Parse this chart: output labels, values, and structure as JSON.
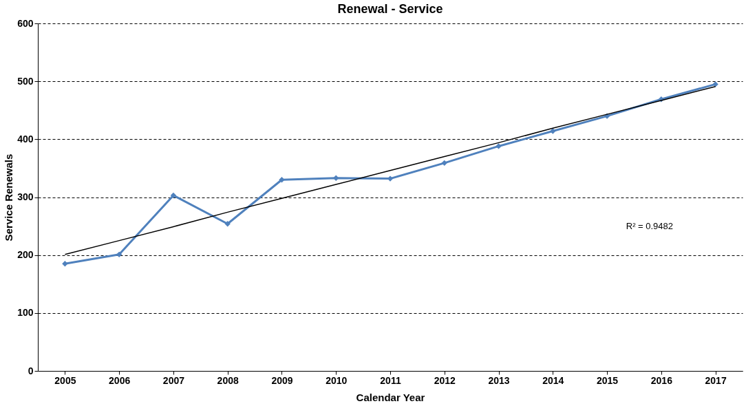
{
  "chart_data": {
    "type": "line",
    "title": "Renewal - Service",
    "xlabel": "Calendar Year",
    "ylabel": "Service Renewals",
    "categories": [
      "2005",
      "2006",
      "2007",
      "2008",
      "2009",
      "2010",
      "2011",
      "2012",
      "2013",
      "2014",
      "2015",
      "2016",
      "2017"
    ],
    "series": [
      {
        "color": "#4f81bd",
        "marker": "diamond",
        "values": [
          185,
          201,
          303,
          254,
          330,
          333,
          332,
          359,
          388,
          414,
          440,
          469,
          495
        ]
      },
      {
        "type": "line",
        "color": "#000000",
        "marker": "none",
        "values": [
          201,
          225,
          249,
          274,
          298,
          322,
          346,
          370,
          394,
          419,
          443,
          467,
          491
        ]
      }
    ],
    "ylim": [
      0,
      600
    ],
    "yticks": [
      0,
      100,
      200,
      300,
      400,
      500,
      600
    ],
    "grid": "y",
    "annotations": [
      "R² = 0.9482"
    ]
  }
}
